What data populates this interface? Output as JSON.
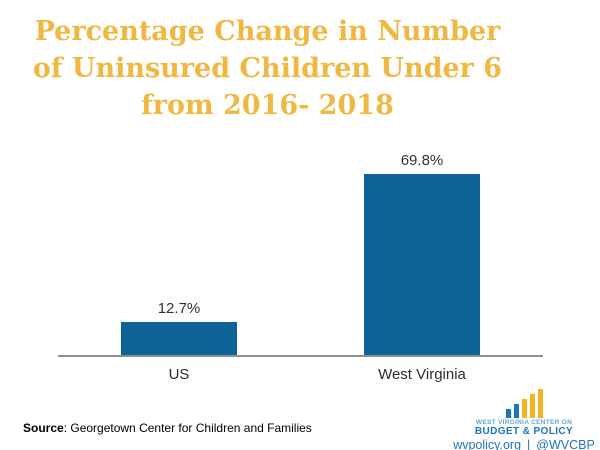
{
  "title": {
    "lines": [
      "Percentage Change in Number",
      "of Uninsured Children Under 6",
      "from 2016- 2018"
    ],
    "color": "#F0B843"
  },
  "chart_data": {
    "type": "bar",
    "categories": [
      "US",
      "West Virginia"
    ],
    "values": [
      12.7,
      69.8
    ],
    "value_labels": [
      "12.7%",
      "69.8%"
    ],
    "title": "Percentage Change in Number of Uninsured Children Under 6 from 2016- 2018",
    "xlabel": "",
    "ylabel": "",
    "ylim": [
      0,
      80
    ],
    "grid": false,
    "legend": null,
    "bar_color": "#0D6396",
    "axis_line_color": "#8e8e8e"
  },
  "source": {
    "label": "Source",
    "text": ": Georgetown Center for Children and Families"
  },
  "logo": {
    "org_line1": "WEST VIRGINIA CENTER ON",
    "org_line2": "BUDGET & POLICY",
    "website": "wvpolicy.org",
    "separator": "|",
    "handle": "@WVCBP",
    "colors": {
      "light_blue": "#5FA8D5",
      "dark_blue": "#1C75BC",
      "link_blue": "#2273B9",
      "gold": "#F5B324"
    }
  }
}
